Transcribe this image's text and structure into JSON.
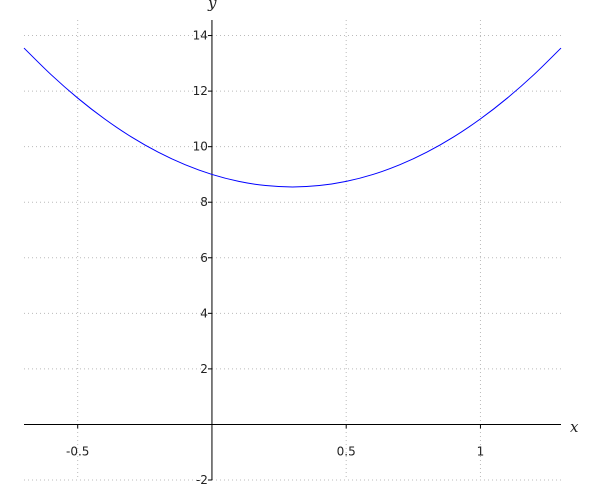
{
  "chart_data": {
    "type": "line",
    "title": "",
    "xlabel": "x",
    "ylabel": "y",
    "xlim": [
      -0.7,
      1.3
    ],
    "ylim": [
      -2,
      14.56
    ],
    "grid": true,
    "grid_style": "dotted",
    "x_ticks": [
      -0.5,
      0.5,
      1
    ],
    "x_tick_labels": [
      "-0.5",
      "0.5",
      "1"
    ],
    "y_ticks": [
      -2,
      2,
      4,
      6,
      8,
      10,
      12,
      14
    ],
    "y_tick_labels": [
      "-2",
      "2",
      "4",
      "6",
      "8",
      "10",
      "12",
      "14"
    ],
    "series": [
      {
        "color": "#0000ff",
        "x": [
          -0.7,
          -0.6,
          -0.5,
          -0.4,
          -0.3,
          -0.2,
          -0.1,
          0,
          0.1,
          0.2,
          0.3,
          0.4,
          0.5,
          0.6,
          0.7,
          0.8,
          0.9,
          1.0,
          1.1,
          1.2,
          1.3
        ],
        "y": [
          13.55,
          12.6,
          11.75,
          11.0,
          10.35,
          9.8,
          9.35,
          9.0,
          8.75,
          8.6,
          8.55,
          8.6,
          8.75,
          9.0,
          9.35,
          9.8,
          10.35,
          11.0,
          11.75,
          12.6,
          13.55
        ]
      }
    ]
  }
}
